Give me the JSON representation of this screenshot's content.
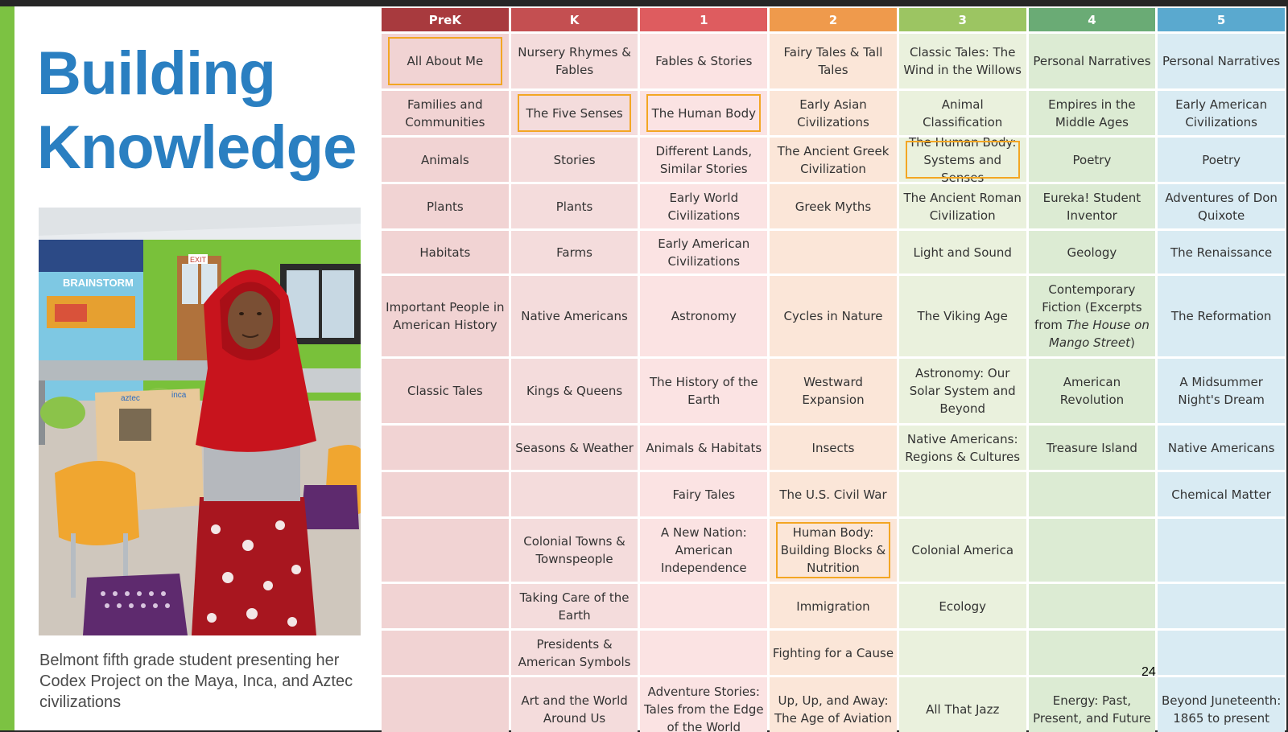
{
  "slide": {
    "title_line1": "Building",
    "title_line2": "Knowledge",
    "caption": "Belmont fifth grade student presenting her Codex Project on the Maya, Inca, and Aztec civilizations",
    "page_number": "24",
    "photo_sign_text": "BRAINSTORM",
    "photo_exit_text": "EXIT",
    "photo_board_labels": [
      "aztec",
      "inca"
    ]
  },
  "colors": {
    "accent_green": "#7cc242",
    "title_blue": "#2a7fc1",
    "highlight_border": "#f3a623"
  },
  "curriculum": {
    "columns": [
      {
        "label": "PreK",
        "header_color": "#a83a3e",
        "bg": "#f1d3d3"
      },
      {
        "label": "K",
        "header_color": "#c44f51",
        "bg": "#f4dcdc"
      },
      {
        "label": "1",
        "header_color": "#de5c5f",
        "bg": "#fbe3e3"
      },
      {
        "label": "2",
        "header_color": "#ef9a4c",
        "bg": "#fbe6d8"
      },
      {
        "label": "3",
        "header_color": "#9cc562",
        "bg": "#eaf1dd"
      },
      {
        "label": "4",
        "header_color": "#6aab75",
        "bg": "#dcebd3"
      },
      {
        "label": "5",
        "header_color": "#5aa9cf",
        "bg": "#d9ebf3"
      }
    ],
    "rows": [
      [
        "All About Me",
        "Nursery Rhymes & Fables",
        "Fables & Stories",
        "Fairy Tales & Tall Tales",
        "Classic Tales: The Wind in the Willows",
        "Personal Narratives",
        "Personal Narratives"
      ],
      [
        "Families and Communities",
        "The Five Senses",
        "The Human Body",
        "Early Asian Civilizations",
        "Animal Classification",
        "Empires in the Middle Ages",
        "Early American Civilizations"
      ],
      [
        "Animals",
        "Stories",
        "Different Lands, Similar Stories",
        "The Ancient Greek Civilization",
        "The Human Body: Systems and Senses",
        "Poetry",
        "Poetry"
      ],
      [
        "Plants",
        "Plants",
        "Early World Civilizations",
        "Greek Myths",
        "The Ancient Roman Civilization",
        "Eureka! Student Inventor",
        "Adventures of Don Quixote"
      ],
      [
        "Habitats",
        "Farms",
        "Early American Civilizations",
        "",
        "Light and Sound",
        "Geology",
        "The Renaissance"
      ],
      [
        "Important People in American History",
        "Native Americans",
        "Astronomy",
        "Cycles in Nature",
        "The Viking Age",
        "Contemporary Fiction (Excerpts from The House on Mango Street)",
        "The Reformation"
      ],
      [
        "Classic Tales",
        "Kings & Queens",
        "The History of the Earth",
        "Westward Expansion",
        "Astronomy: Our Solar System and Beyond",
        "American Revolution",
        "A Midsummer Night's Dream"
      ],
      [
        "",
        "Seasons & Weather",
        "Animals & Habitats",
        "Insects",
        "Native Americans: Regions & Cultures",
        "Treasure Island",
        "Native Americans"
      ],
      [
        "",
        "",
        "Fairy Tales",
        "The U.S. Civil War",
        "",
        "",
        "Chemical Matter"
      ],
      [
        "",
        "Colonial Towns & Townspeople",
        "A New Nation: American Independence",
        "Human Body: Building Blocks & Nutrition",
        "Colonial America",
        "",
        ""
      ],
      [
        "",
        "Taking Care of the Earth",
        "",
        "Immigration",
        "Ecology",
        "",
        ""
      ],
      [
        "",
        "Presidents & American Symbols",
        "",
        "Fighting for a Cause",
        "",
        "",
        ""
      ],
      [
        "",
        "Art and the World Around Us",
        "Adventure Stories: Tales from the Edge of the World",
        "Up, Up, and Away: The Age of Aviation",
        "All That Jazz",
        "Energy: Past, Present, and Future",
        "Beyond Juneteenth: 1865 to present"
      ]
    ],
    "highlighted": [
      [
        0,
        0
      ],
      [
        1,
        1
      ],
      [
        1,
        2
      ],
      [
        2,
        4
      ],
      [
        9,
        3
      ]
    ]
  }
}
